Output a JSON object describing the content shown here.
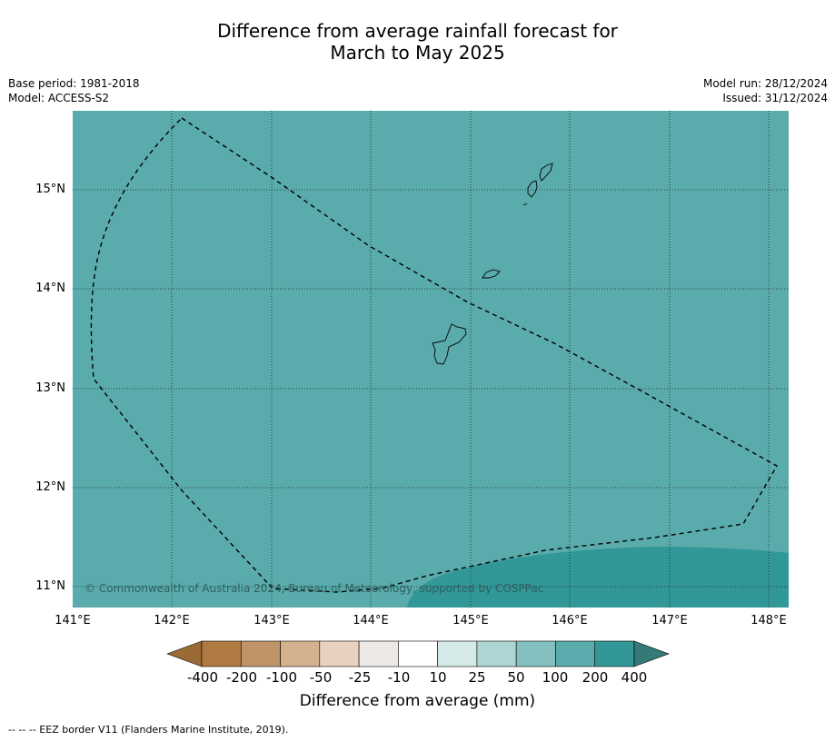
{
  "title_line1": "Difference from average rainfall forecast for",
  "title_line2": "March to May 2025",
  "meta_left": {
    "base_period": "Base period: 1981-2018",
    "model": "Model: ACCESS-S2"
  },
  "meta_right": {
    "model_run": "Model run: 28/12/2024",
    "issued": "Issued: 31/12/2024"
  },
  "map": {
    "lat_labels": [
      "15°N",
      "14°N",
      "13°N",
      "12°N",
      "11°N"
    ],
    "lon_labels": [
      "141°E",
      "142°E",
      "143°E",
      "144°E",
      "145°E",
      "146°E",
      "147°E",
      "148°E"
    ],
    "copyright": "© Commonwealth of Australia 2024, Bureau of Meteorology, supported by COSPPac",
    "background_color": "#5aabab",
    "wet_region_color": "#329797"
  },
  "colorbar": {
    "colors": [
      "#9c6a35",
      "#b07a42",
      "#c09468",
      "#d4b18f",
      "#e6d2bf",
      "#ede9e6",
      "#ffffff",
      "#d5eae8",
      "#add5d4",
      "#84c0bf",
      "#5aabab",
      "#339797",
      "#357979"
    ],
    "tick_labels": [
      "-400",
      "-200",
      "-100",
      "-50",
      "-25",
      "-10",
      "10",
      "25",
      "50",
      "100",
      "200",
      "400"
    ],
    "title": "Difference from average (mm)"
  },
  "footer": "--  --  -- EEZ border V11 (Flanders Marine Institute, 2019)."
}
